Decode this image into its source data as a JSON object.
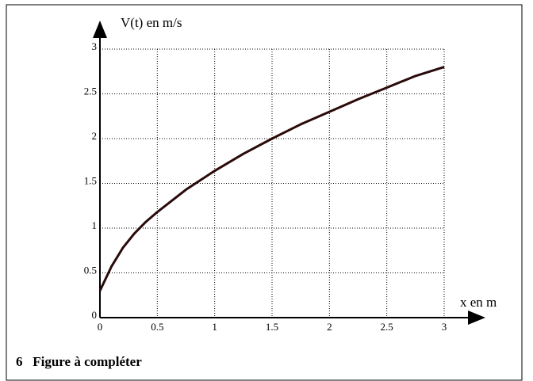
{
  "chart_data": {
    "type": "line",
    "y_label": "V(t) en m/s",
    "x_label": "x en m",
    "caption": "6   Figure à compléter",
    "x": [
      0,
      0.1,
      0.2,
      0.3,
      0.4,
      0.5,
      0.75,
      1,
      1.25,
      1.5,
      1.75,
      2,
      2.25,
      2.5,
      2.75,
      3
    ],
    "series": [
      {
        "name": "V(t)",
        "color": "#2a0a0a",
        "values": [
          0.3,
          0.57,
          0.78,
          0.94,
          1.07,
          1.18,
          1.43,
          1.64,
          1.83,
          2.0,
          2.16,
          2.3,
          2.44,
          2.57,
          2.7,
          2.8
        ]
      }
    ],
    "xlim": [
      0,
      3
    ],
    "ylim": [
      0,
      3
    ],
    "xticks": [
      0,
      0.5,
      1,
      1.5,
      2,
      2.5,
      3
    ],
    "yticks": [
      0,
      0.5,
      1,
      1.5,
      2,
      2.5,
      3
    ],
    "grid": true
  }
}
